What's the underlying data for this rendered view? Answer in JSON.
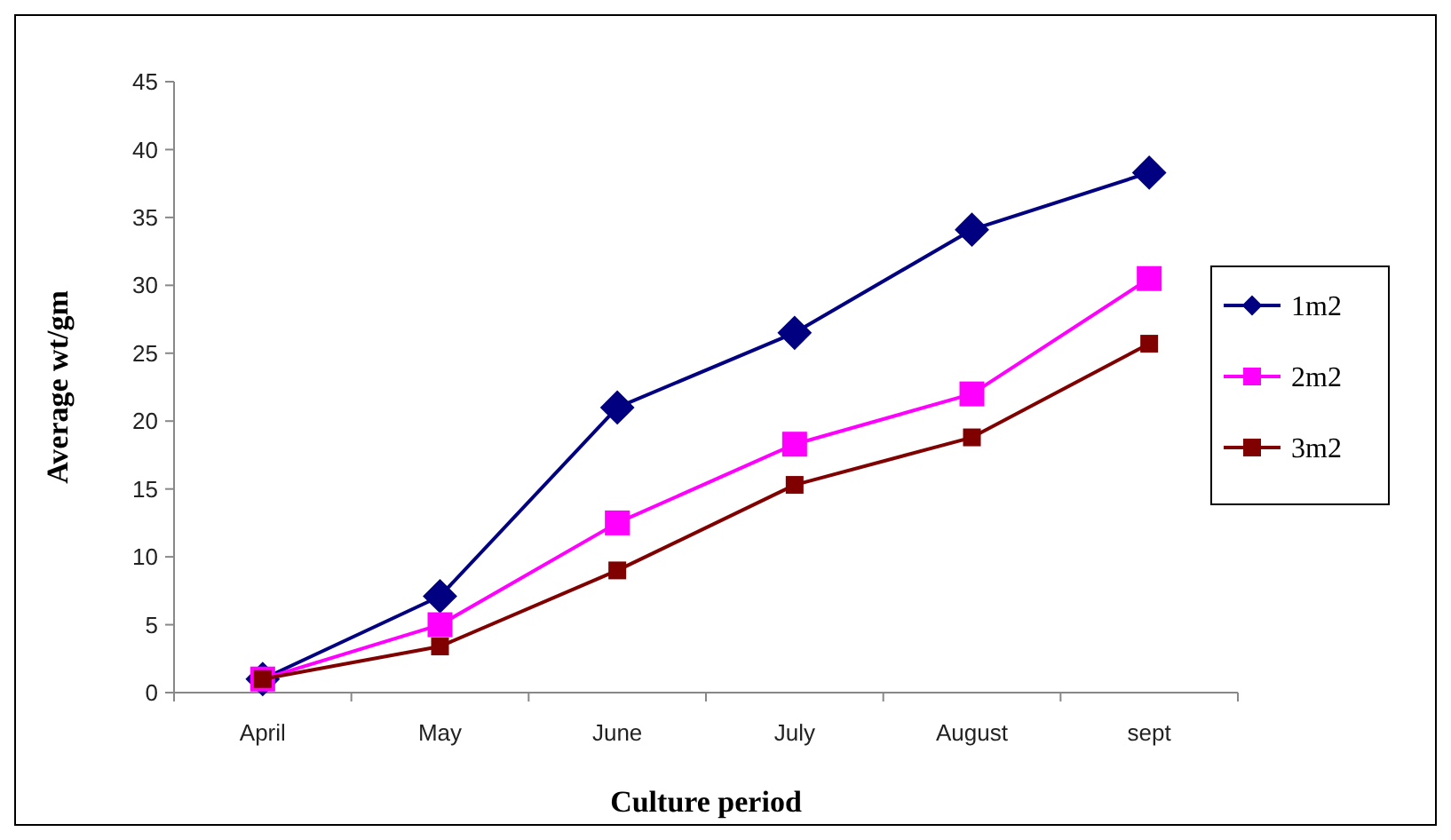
{
  "chart_data": {
    "type": "line",
    "xlabel": "Culture period",
    "ylabel": "Average wt/gm",
    "categories": [
      "April",
      "May",
      "June",
      "July",
      "August",
      "sept"
    ],
    "series": [
      {
        "name": "1m2",
        "color": "#000080",
        "marker": "diamond",
        "values": [
          1,
          7.1,
          21,
          26.5,
          34.1,
          38.3
        ]
      },
      {
        "name": "2m2",
        "color": "#ff00ff",
        "marker": "square",
        "values": [
          1,
          5,
          12.5,
          18.3,
          22,
          30.5
        ]
      },
      {
        "name": "3m2",
        "color": "#800000",
        "marker": "square",
        "values": [
          1,
          3.4,
          9,
          15.3,
          18.8,
          25.7
        ]
      }
    ],
    "ylim": [
      0,
      45
    ],
    "yticks": [
      0,
      5,
      10,
      15,
      20,
      25,
      30,
      35,
      40,
      45
    ],
    "legend": "right",
    "grid": false
  }
}
